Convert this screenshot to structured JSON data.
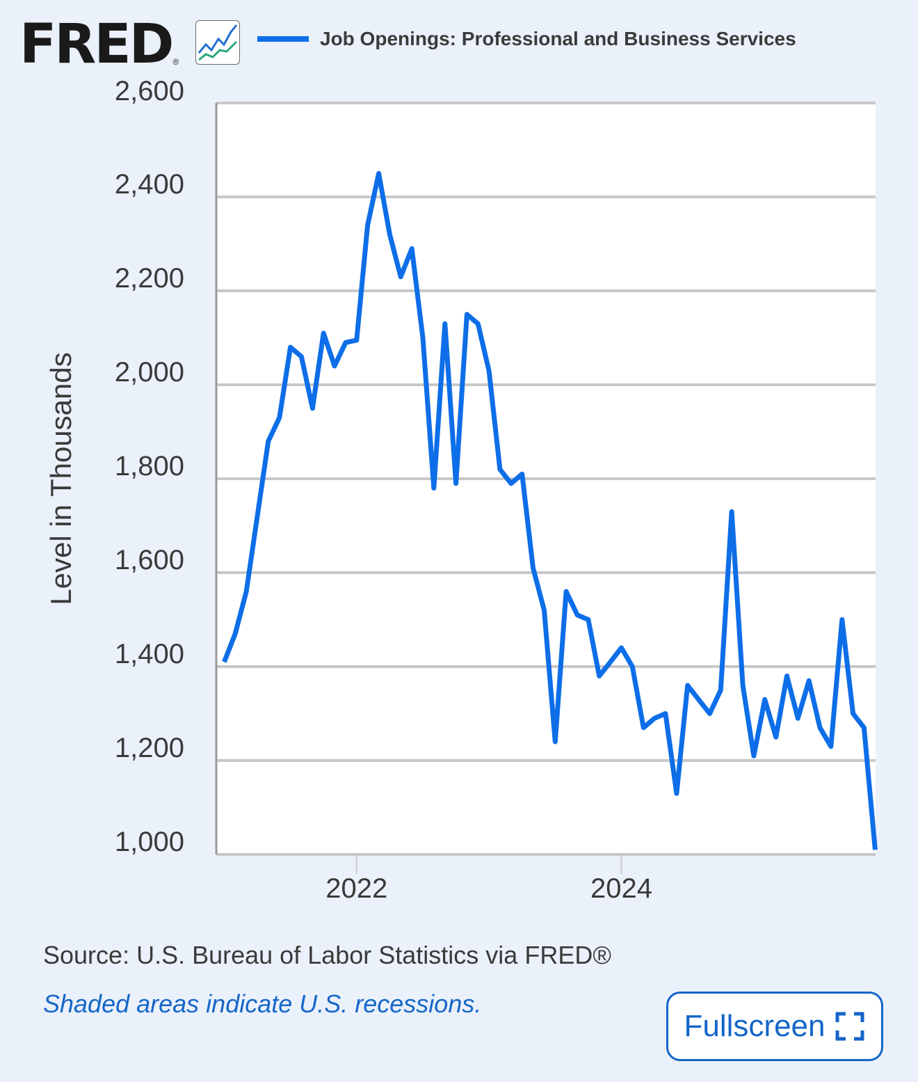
{
  "logo": {
    "text": "FRED",
    "registered": "®"
  },
  "legend": {
    "label": "Job Openings: Professional and Business Services",
    "color": "#0d6ee8"
  },
  "footer": {
    "source": "Source: U.S. Bureau of Labor Statistics via FRED®",
    "recession_note": "Shaded areas indicate U.S. recessions.",
    "fullscreen_label": "Fullscreen"
  },
  "chart_data": {
    "type": "line",
    "title": "Job Openings: Professional and Business Services",
    "xlabel": "",
    "ylabel": "Level in Thousands",
    "ylim": [
      1000,
      2600
    ],
    "yticks": [
      1000,
      1200,
      1400,
      1600,
      1800,
      2000,
      2200,
      2400,
      2600
    ],
    "ytick_labels": [
      "1,000",
      "1,200",
      "1,400",
      "1,600",
      "1,800",
      "2,000",
      "2,200",
      "2,400",
      "2,600"
    ],
    "xticks": [
      2022,
      2024
    ],
    "xtick_labels": [
      "2022",
      "2024"
    ],
    "xlim": [
      2020.94,
      2025.92
    ],
    "grid": true,
    "series": [
      {
        "name": "Job Openings: Professional and Business Services",
        "color": "#0d6ee8",
        "x": [
          2021.0,
          2021.083,
          2021.167,
          2021.25,
          2021.333,
          2021.417,
          2021.5,
          2021.583,
          2021.667,
          2021.75,
          2021.833,
          2021.917,
          2022.0,
          2022.083,
          2022.167,
          2022.25,
          2022.333,
          2022.417,
          2022.5,
          2022.583,
          2022.667,
          2022.75,
          2022.833,
          2022.917,
          2023.0,
          2023.083,
          2023.167,
          2023.25,
          2023.333,
          2023.417,
          2023.5,
          2023.583,
          2023.667,
          2023.75,
          2023.833,
          2023.917,
          2024.0,
          2024.083,
          2024.167,
          2024.25,
          2024.333,
          2024.417,
          2024.5,
          2024.583,
          2024.667,
          2024.75,
          2024.833,
          2024.917,
          2025.0,
          2025.083,
          2025.167,
          2025.25,
          2025.333,
          2025.417,
          2025.5,
          2025.583,
          2025.667,
          2025.75,
          2025.833,
          2025.917
        ],
        "values": [
          1410,
          1470,
          1560,
          1720,
          1880,
          1930,
          2080,
          2060,
          1950,
          2110,
          2040,
          2090,
          2095,
          2340,
          2450,
          2320,
          2230,
          2290,
          2100,
          1780,
          2130,
          1790,
          2150,
          2130,
          2030,
          1820,
          1790,
          1810,
          1610,
          1520,
          1240,
          1560,
          1510,
          1500,
          1380,
          1410,
          1440,
          1400,
          1270,
          1290,
          1300,
          1130,
          1360,
          1330,
          1300,
          1350,
          1730,
          1360,
          1210,
          1330,
          1250,
          1380,
          1290,
          1370,
          1270,
          1230,
          1500,
          1300,
          1270,
          1010
        ]
      }
    ]
  }
}
